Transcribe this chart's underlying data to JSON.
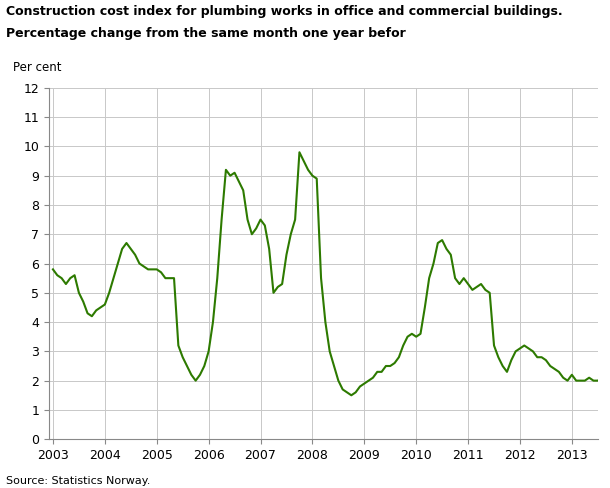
{
  "title_line1": "Construction cost index for plumbing works in office and commercial buildings.",
  "title_line2": "Percentage change from the same month one year befor",
  "ylabel": "Per cent",
  "source": "Source: Statistics Norway.",
  "line_color": "#2d7a00",
  "line_width": 1.5,
  "background_color": "#ffffff",
  "grid_color": "#c8c8c8",
  "ylim": [
    0,
    12
  ],
  "yticks": [
    0,
    1,
    2,
    3,
    4,
    5,
    6,
    7,
    8,
    9,
    10,
    11,
    12
  ],
  "xtick_years": [
    2003,
    2004,
    2005,
    2006,
    2007,
    2008,
    2009,
    2010,
    2011,
    2012,
    2013
  ],
  "values": [
    5.8,
    5.6,
    5.5,
    5.3,
    5.5,
    5.6,
    5.0,
    4.7,
    4.3,
    4.2,
    4.4,
    4.5,
    4.6,
    5.0,
    5.5,
    6.0,
    6.5,
    6.7,
    6.5,
    6.3,
    6.0,
    5.9,
    5.8,
    5.8,
    5.8,
    5.7,
    5.5,
    5.5,
    5.5,
    3.2,
    2.8,
    2.5,
    2.2,
    2.0,
    2.2,
    2.5,
    3.0,
    4.0,
    5.5,
    7.5,
    9.2,
    9.0,
    9.1,
    8.8,
    8.5,
    7.5,
    7.0,
    7.2,
    7.5,
    7.3,
    6.5,
    5.0,
    5.2,
    5.3,
    6.3,
    7.0,
    7.5,
    9.8,
    9.5,
    9.2,
    9.0,
    8.9,
    5.5,
    4.0,
    3.0,
    2.5,
    2.0,
    1.7,
    1.6,
    1.5,
    1.6,
    1.8,
    1.9,
    2.0,
    2.1,
    2.3,
    2.3,
    2.5,
    2.5,
    2.6,
    2.8,
    3.2,
    3.5,
    3.6,
    3.5,
    3.6,
    4.5,
    5.5,
    6.0,
    6.7,
    6.8,
    6.5,
    6.3,
    5.5,
    5.3,
    5.5,
    5.3,
    5.1,
    5.2,
    5.3,
    5.1,
    5.0,
    3.2,
    2.8,
    2.5,
    2.3,
    2.7,
    3.0,
    3.1,
    3.2,
    3.1,
    3.0,
    2.8,
    2.8,
    2.7,
    2.5,
    2.4,
    2.3,
    2.1,
    2.0,
    2.2,
    2.0,
    2.0,
    2.0,
    2.1,
    2.0,
    2.0,
    2.1,
    2.0
  ],
  "start_year": 2003,
  "start_month": 1
}
